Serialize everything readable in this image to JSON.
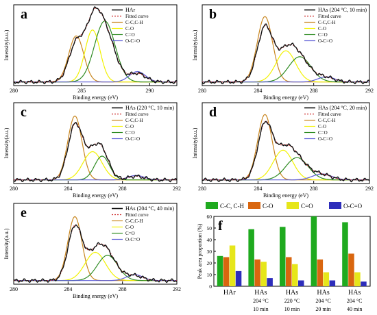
{
  "colors": {
    "raw": "#111111",
    "fitted": "#cc2222",
    "cc": "#c8861f",
    "co": "#f2f200",
    "c_o_double": "#2e8b22",
    "occo": "#5b5bd6"
  },
  "chart_data": [
    {
      "type": "line",
      "panel_label": "a",
      "xlabel": "Binding energy (eV)",
      "ylabel": "Intensity(a.u.)",
      "xlim": [
        280,
        292
      ],
      "xticks": [
        "280",
        "285",
        "290"
      ],
      "xtick_values": [
        280,
        285,
        290
      ],
      "legend_position": "top-right",
      "legend": [
        "HAr",
        "Fitted curve",
        "C-C,C-H",
        "C-O",
        "C=O",
        "O-C=O"
      ],
      "peaks": {
        "cc": {
          "center": 284.6,
          "height": 0.62,
          "sigma": 0.55
        },
        "co": {
          "center": 285.8,
          "height": 0.7,
          "sigma": 0.55
        },
        "c_o_double": {
          "center": 286.7,
          "height": 0.82,
          "sigma": 0.75
        },
        "occo": {
          "center": 289.1,
          "height": 0.14,
          "sigma": 0.6
        }
      }
    },
    {
      "type": "line",
      "panel_label": "b",
      "xlabel": "Binding energy (eV)",
      "ylabel": "Intensity(a.u.)",
      "xlim": [
        280,
        292
      ],
      "xticks": [
        "280",
        "284",
        "288",
        "292"
      ],
      "xtick_values": [
        280,
        284,
        288,
        292
      ],
      "legend_position": "top-right",
      "legend": [
        "HAs (204 °C, 10 min)",
        "Fitted curve",
        "C-C,C-H",
        "C-O",
        "C=O",
        "O-C=O"
      ],
      "peaks": {
        "cc": {
          "center": 284.5,
          "height": 0.88,
          "sigma": 0.55
        },
        "co": {
          "center": 286.0,
          "height": 0.42,
          "sigma": 0.7
        },
        "c_o_double": {
          "center": 287.0,
          "height": 0.34,
          "sigma": 0.8
        },
        "occo": {
          "center": 288.9,
          "height": 0.07,
          "sigma": 0.6
        }
      }
    },
    {
      "type": "line",
      "panel_label": "c",
      "xlabel": "Binding energy (eV)",
      "ylabel": "Intensity(a.u.)",
      "xlim": [
        280,
        292
      ],
      "xticks": [
        "280",
        "284",
        "288",
        "292"
      ],
      "xtick_values": [
        280,
        284,
        288,
        292
      ],
      "legend_position": "top-right",
      "legend": [
        "HAs (220 °C, 10 min)",
        "Fitted curve",
        "C-C,C-H",
        "C-O",
        "C=O",
        "O-C=O"
      ],
      "peaks": {
        "cc": {
          "center": 284.5,
          "height": 0.86,
          "sigma": 0.52
        },
        "co": {
          "center": 285.8,
          "height": 0.38,
          "sigma": 0.7
        },
        "c_o_double": {
          "center": 286.5,
          "height": 0.32,
          "sigma": 0.55
        },
        "occo": {
          "center": 289.0,
          "height": 0.06,
          "sigma": 0.6
        }
      }
    },
    {
      "type": "line",
      "panel_label": "d",
      "xlabel": "Binding energy (eV)",
      "ylabel": "Intensity(a.u.)",
      "xlim": [
        280,
        292
      ],
      "xticks": [
        "280",
        "284",
        "288",
        "292"
      ],
      "xtick_values": [
        280,
        284,
        288,
        292
      ],
      "legend_position": "top-right",
      "legend": [
        "HAs (204 °C, 20 min)",
        "Fitted curve",
        "C-C,C-H",
        "C-O",
        "C=O",
        "O-C=O"
      ],
      "peaks": {
        "cc": {
          "center": 284.5,
          "height": 0.88,
          "sigma": 0.52
        },
        "co": {
          "center": 285.8,
          "height": 0.4,
          "sigma": 0.7
        },
        "c_o_double": {
          "center": 286.8,
          "height": 0.3,
          "sigma": 0.8
        },
        "occo": {
          "center": 288.6,
          "height": 0.08,
          "sigma": 0.7
        }
      }
    },
    {
      "type": "line",
      "panel_label": "e",
      "xlabel": "Binding energy (eV)",
      "ylabel": "Intensity(a.u.)",
      "xlim": [
        280,
        292
      ],
      "xticks": [
        "280",
        "284",
        "288",
        "292"
      ],
      "xtick_values": [
        280,
        284,
        288,
        292
      ],
      "legend_position": "top-right",
      "legend": [
        "HAs (204 °C, 40 min)",
        "Fitted curve",
        "C-C,C-H",
        "C-O",
        "C=O",
        "O-C=O"
      ],
      "peaks": {
        "cc": {
          "center": 284.5,
          "height": 0.86,
          "sigma": 0.52
        },
        "co": {
          "center": 286.0,
          "height": 0.38,
          "sigma": 0.75
        },
        "c_o_double": {
          "center": 286.9,
          "height": 0.34,
          "sigma": 0.75
        },
        "occo": {
          "center": 288.9,
          "height": 0.08,
          "sigma": 0.6
        }
      }
    },
    {
      "type": "bar",
      "panel_label": "f",
      "ylabel": "Peak area proportion (%)",
      "ylim": [
        0,
        60
      ],
      "yticks": [
        "0",
        "10",
        "20",
        "30",
        "40",
        "50",
        "60"
      ],
      "legend_position": "top",
      "categories": [
        [
          "HAr"
        ],
        [
          "HAs",
          "204 °C",
          "10 min"
        ],
        [
          "HAs",
          "220 °C",
          "10 min"
        ],
        [
          "HAs",
          "204 °C",
          "20 min"
        ],
        [
          "HAs",
          "204 °C",
          "40 min"
        ]
      ],
      "series": [
        {
          "name": "C-C, C-H",
          "color": "#1faa1f",
          "values": [
            26,
            49,
            51,
            60,
            55
          ]
        },
        {
          "name": "C-O",
          "color": "#d9660f",
          "values": [
            25,
            23,
            25,
            23,
            28
          ]
        },
        {
          "name": "C=O",
          "color": "#e6e61a",
          "values": [
            35,
            21,
            19,
            12,
            12
          ]
        },
        {
          "name": "O-C=O",
          "color": "#2d2dbb",
          "values": [
            13,
            7,
            5,
            5,
            4
          ]
        }
      ]
    }
  ]
}
